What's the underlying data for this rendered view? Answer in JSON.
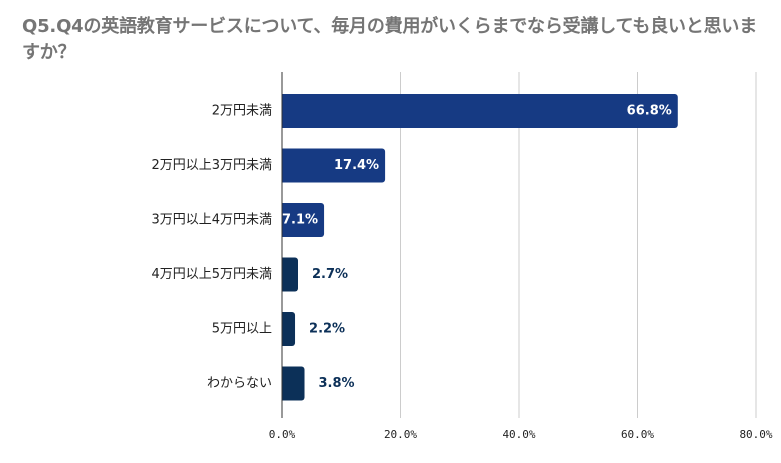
{
  "chart_data": {
    "type": "bar",
    "orientation": "horizontal",
    "title": "Q5.Q4の英語教育サービスについて、毎月の費用がいくらまでなら受講しても良いと思いますか？",
    "xlabel": "",
    "ylabel": "",
    "categories": [
      "2万円未満",
      "2万円以上3万円未満",
      "3万円以上4万円未満",
      "4万円以上5万円未満",
      "5万円以上",
      "わからない"
    ],
    "values": [
      66.8,
      17.4,
      7.1,
      2.7,
      2.2,
      3.8
    ],
    "data_labels": [
      "66.8%",
      "17.4%",
      "7.1%",
      "2.7%",
      "2.2%",
      "3.8%"
    ],
    "xlim": [
      0,
      80
    ],
    "xticks": [
      "0.0%",
      "20.0%",
      "40.0%",
      "60.0%",
      "80.0%"
    ],
    "grid": true,
    "legend": "none",
    "colors": {
      "bar_primary": "#163a83",
      "bar_secondary": "#0c3058",
      "label_inside": "#ffffff",
      "label_outside": "#0c3058",
      "title": "#757575",
      "gridline": "#cccccc",
      "axis": "#333333",
      "text": "#222222"
    }
  }
}
